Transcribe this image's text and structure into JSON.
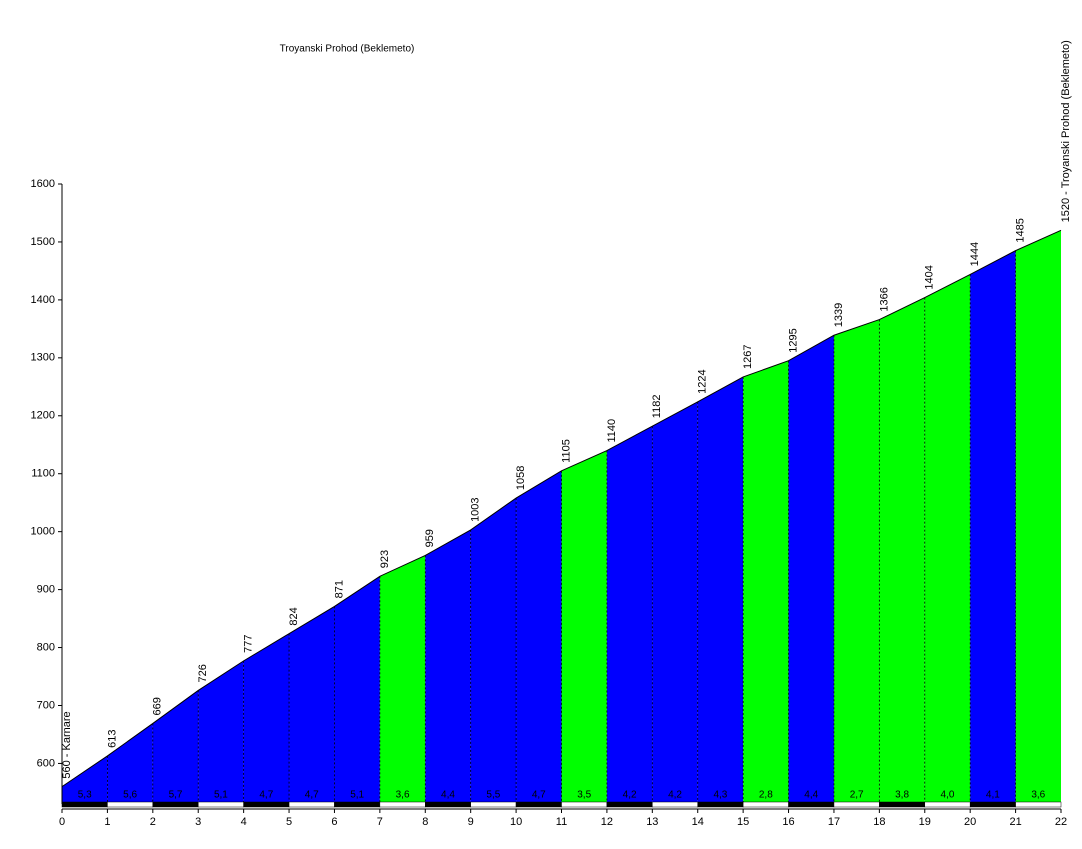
{
  "chart_data": {
    "type": "area",
    "title": "Troyanski Prohod (Beklemeto)",
    "x": [
      0,
      1,
      2,
      3,
      4,
      5,
      6,
      7,
      8,
      9,
      10,
      11,
      12,
      13,
      14,
      15,
      16,
      17,
      18,
      19,
      20,
      21,
      22
    ],
    "values": [
      560,
      613,
      669,
      726,
      777,
      824,
      871,
      923,
      959,
      1003,
      1058,
      1105,
      1140,
      1182,
      1224,
      1267,
      1295,
      1339,
      1366,
      1404,
      1444,
      1485,
      1520
    ],
    "value_labels": [
      "560 - Karnare",
      "613",
      "669",
      "726",
      "777",
      "824",
      "871",
      "923",
      "959",
      "1003",
      "1058",
      "1105",
      "1140",
      "1182",
      "1224",
      "1267",
      "1295",
      "1339",
      "1366",
      "1404",
      "1444",
      "1485",
      "1520 - Troyanski Prohod (Beklemeto)"
    ],
    "gradients": [
      5.3,
      5.6,
      5.7,
      5.1,
      4.7,
      4.7,
      5.1,
      3.6,
      4.4,
      5.5,
      4.7,
      3.5,
      4.2,
      4.2,
      4.3,
      2.8,
      4.4,
      2.7,
      3.8,
      4.0,
      4.1,
      3.6
    ],
    "gradient_labels": [
      "5,3",
      "5,6",
      "5,7",
      "5,1",
      "4,7",
      "4,7",
      "5,1",
      "3,6",
      "4,4",
      "5,5",
      "4,7",
      "3,5",
      "4,2",
      "4,2",
      "4,3",
      "2,8",
      "4,4",
      "2,7",
      "3,8",
      "4,0",
      "4,1",
      "3,6"
    ],
    "segment_colors": [
      "#0000ff",
      "#0000ff",
      "#0000ff",
      "#0000ff",
      "#0000ff",
      "#0000ff",
      "#0000ff",
      "#00ff00",
      "#0000ff",
      "#0000ff",
      "#0000ff",
      "#00ff00",
      "#0000ff",
      "#0000ff",
      "#0000ff",
      "#00ff00",
      "#0000ff",
      "#00ff00",
      "#00ff00",
      "#00ff00",
      "#0000ff",
      "#00ff00"
    ],
    "xlim": [
      0,
      22
    ],
    "xticks": [
      0,
      1,
      2,
      3,
      4,
      5,
      6,
      7,
      8,
      9,
      10,
      11,
      12,
      13,
      14,
      15,
      16,
      17,
      18,
      19,
      20,
      21,
      22
    ],
    "ylim": [
      530,
      1600
    ],
    "yticks": [
      600,
      700,
      800,
      900,
      1000,
      1100,
      1200,
      1300,
      1400,
      1500,
      1600
    ]
  }
}
